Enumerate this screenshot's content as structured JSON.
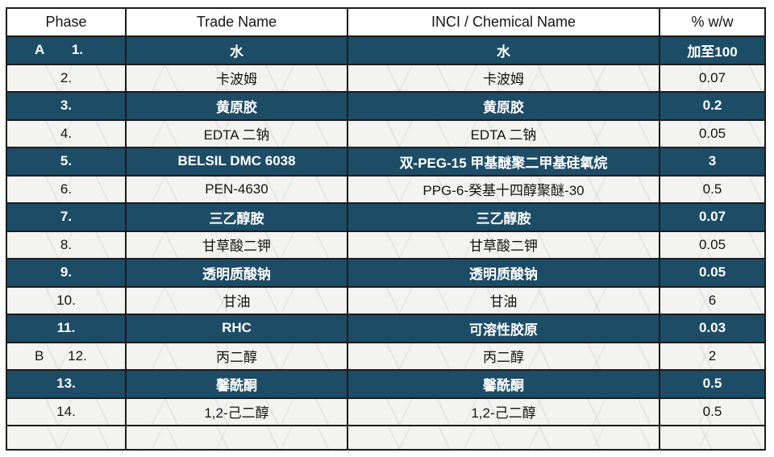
{
  "table": {
    "columns": [
      "Phase",
      "Trade Name",
      "INCI / Chemical Name",
      "% w/w"
    ],
    "rows": [
      {
        "phase_letter": "A",
        "number": "1.",
        "trade_name": "水",
        "inci_name": "水",
        "percent": "加至100"
      },
      {
        "phase_letter": "",
        "number": "2.",
        "trade_name": "卡波姆",
        "inci_name": "卡波姆",
        "percent": "0.07"
      },
      {
        "phase_letter": "",
        "number": "3.",
        "trade_name": "黄原胶",
        "inci_name": "黄原胶",
        "percent": "0.2"
      },
      {
        "phase_letter": "",
        "number": "4.",
        "trade_name": "EDTA 二钠",
        "inci_name": "EDTA 二钠",
        "percent": "0.05"
      },
      {
        "phase_letter": "",
        "number": "5.",
        "trade_name": "BELSIL DMC 6038",
        "inci_name": "双-PEG-15 甲基醚聚二甲基硅氧烷",
        "percent": "3"
      },
      {
        "phase_letter": "",
        "number": "6.",
        "trade_name": "PEN-4630",
        "inci_name": "PPG-6-癸基十四醇聚醚-30",
        "percent": "0.5"
      },
      {
        "phase_letter": "",
        "number": "7.",
        "trade_name": "三乙醇胺",
        "inci_name": "三乙醇胺",
        "percent": "0.07"
      },
      {
        "phase_letter": "",
        "number": "8.",
        "trade_name": "甘草酸二钾",
        "inci_name": "甘草酸二钾",
        "percent": "0.05"
      },
      {
        "phase_letter": "",
        "number": "9.",
        "trade_name": "透明质酸钠",
        "inci_name": "透明质酸钠",
        "percent": "0.05"
      },
      {
        "phase_letter": "",
        "number": "10.",
        "trade_name": "甘油",
        "inci_name": "甘油",
        "percent": "6"
      },
      {
        "phase_letter": "",
        "number": "11.",
        "trade_name": "RHC",
        "inci_name": "可溶性胶原",
        "percent": "0.03"
      },
      {
        "phase_letter": "B",
        "number": "12.",
        "trade_name": "丙二醇",
        "inci_name": "丙二醇",
        "percent": "2"
      },
      {
        "phase_letter": "",
        "number": "13.",
        "trade_name": "馨酰酮",
        "inci_name": "馨酰酮",
        "percent": "0.5"
      },
      {
        "phase_letter": "",
        "number": "14.",
        "trade_name": "1,2-己二醇",
        "inci_name": "1,2-己二醇",
        "percent": "0.5"
      }
    ]
  },
  "colors": {
    "dark_row_bg": "#1d4c66",
    "dark_row_text": "#ffffff",
    "light_row_bg": "#f3f3f1",
    "light_row_text": "#141414",
    "header_bg": "#ffffff",
    "border": "#1b1b1b"
  }
}
